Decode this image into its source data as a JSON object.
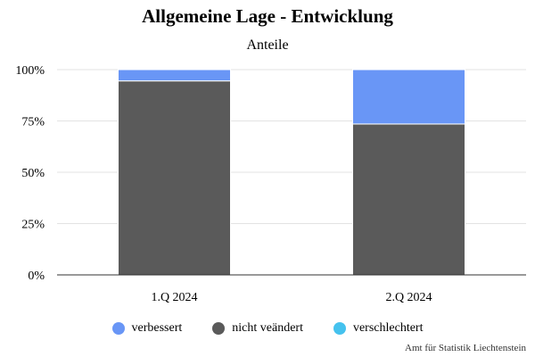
{
  "chart_data": {
    "type": "bar",
    "stacked": true,
    "title": "Allgemeine Lage - Entwicklung",
    "subtitle": "Anteile",
    "categories": [
      "1.Q 2024",
      "2.Q 2024"
    ],
    "series": [
      {
        "name": "verbessert",
        "color": "#6996f6",
        "values": [
          5.5,
          26.5
        ]
      },
      {
        "name": "nicht veändert",
        "color": "#5a5a5a",
        "values": [
          94.5,
          73.5
        ]
      },
      {
        "name": "verschlechtert",
        "color": "#45c2ee",
        "values": [
          0,
          0
        ]
      }
    ],
    "stack_order": [
      "nicht veändert",
      "verbessert",
      "verschlechtert"
    ],
    "yticks": [
      "0%",
      "25%",
      "50%",
      "75%",
      "100%"
    ],
    "ylim": [
      0,
      100
    ],
    "grid": true,
    "legend_position": "bottom"
  },
  "credit": "Amt für Statistik Liechtenstein"
}
